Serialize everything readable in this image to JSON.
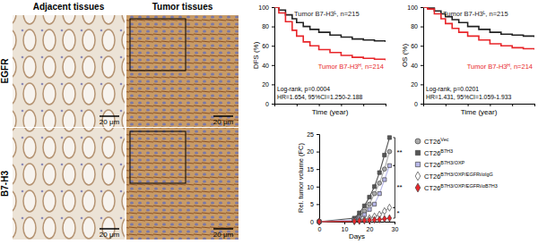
{
  "image_panel": {
    "columns": [
      "Adjacent tissues",
      "Tumor tissues"
    ],
    "rows": [
      "EGFR",
      "B7-H3"
    ],
    "scale_bar": "20 μm"
  },
  "chart_data": [
    {
      "type": "line",
      "line_style": "step",
      "x_label": "Time (year)",
      "y_label": "DFS (%)",
      "xlim": [
        0,
        5
      ],
      "xticks": [
        0,
        1,
        2,
        3,
        4,
        5
      ],
      "ylim": [
        0,
        100
      ],
      "yticks": [
        0,
        20,
        40,
        60,
        80,
        100
      ],
      "tick_labels": "y",
      "x": [
        0,
        0.2,
        0.5,
        0.8,
        1,
        1.3,
        1.6,
        2,
        2.5,
        3,
        3.5,
        4,
        4.5,
        5
      ],
      "series": [
        {
          "name": "Tumor B7-H3ᴸ, n=215",
          "color": "#222222",
          "values": [
            100,
            97,
            92,
            88,
            84,
            80,
            77,
            74,
            71,
            69,
            67,
            66,
            65,
            64
          ]
        },
        {
          "name": "Tumor B7-H3ᴴ, n=214",
          "color": "#e8262a",
          "values": [
            100,
            94,
            85,
            76,
            70,
            64,
            60,
            56,
            53,
            50,
            48,
            47,
            46,
            45
          ]
        }
      ],
      "annotations": [
        "Log-rank, p=0.0004",
        "HR=1.654, 95%CI=1.250-2.188"
      ]
    },
    {
      "type": "line",
      "line_style": "step",
      "x_label": "Time (year)",
      "y_label": "OS (%)",
      "xlim": [
        0,
        5
      ],
      "xticks": [
        0,
        1,
        2,
        3,
        4,
        5
      ],
      "ylim": [
        0,
        100
      ],
      "yticks": [
        0,
        20,
        40,
        60,
        80,
        100
      ],
      "tick_labels": "y",
      "x": [
        0,
        0.2,
        0.5,
        0.8,
        1,
        1.3,
        1.6,
        2,
        2.5,
        3,
        3.5,
        4,
        4.5,
        5
      ],
      "series": [
        {
          "name": "Tumor B7-H3ᴸ, n=215",
          "color": "#222222",
          "values": [
            100,
            99,
            96,
            93,
            90,
            87,
            84,
            80,
            77,
            74,
            72,
            71,
            70,
            69
          ]
        },
        {
          "name": "Tumor B7-H3ᴴ, n=214",
          "color": "#e8262a",
          "values": [
            100,
            98,
            93,
            88,
            83,
            78,
            74,
            70,
            66,
            62,
            60,
            58,
            57,
            56
          ]
        }
      ],
      "annotations": [
        "Log-rank, p=0.0201",
        "HR=1.431, 95%CI=1.059-1.933"
      ]
    },
    {
      "type": "line",
      "x_label": "Days",
      "y_label": "Rel. tumor volume (FC)",
      "xlim": [
        0,
        30
      ],
      "xticks": [
        0,
        10,
        20,
        30
      ],
      "ylim": [
        0,
        25
      ],
      "yticks": [
        0,
        5,
        10,
        15,
        20,
        25
      ],
      "x": [
        0,
        14,
        16,
        18,
        20,
        22,
        24,
        26,
        28
      ],
      "series": [
        {
          "name": "CT26Vec",
          "color": "#aaaaaa",
          "marker": "circle",
          "values": [
            0,
            0.5,
            1.5,
            3,
            5,
            8,
            11,
            15,
            20
          ]
        },
        {
          "name": "CT26B7H3",
          "color": "#555555",
          "marker": "square",
          "values": [
            0,
            1,
            2.5,
            4.5,
            7,
            10,
            14,
            19,
            24
          ]
        },
        {
          "name": "CT26B7H3/OXP",
          "color": "#b7b7e8",
          "marker": "square",
          "values": [
            0,
            0.5,
            1,
            2,
            3.5,
            5,
            8,
            12,
            16
          ]
        },
        {
          "name": "CT26B7H3/OXP/EGFRi/αIgG",
          "color": "#ffffff",
          "marker": "diamond",
          "values": [
            0,
            0.2,
            0.4,
            0.6,
            1,
            1.5,
            2,
            3,
            4
          ]
        },
        {
          "name": "CT26B7H3/OXP/EGFRi/αB7H3",
          "color": "#e8262a",
          "marker": "diamond",
          "values": [
            0,
            0.1,
            0.2,
            0.3,
            0.4,
            0.5,
            0.6,
            0.8,
            1
          ]
        }
      ],
      "annotations": [
        "**",
        "**",
        "*"
      ],
      "legend": "right"
    }
  ]
}
